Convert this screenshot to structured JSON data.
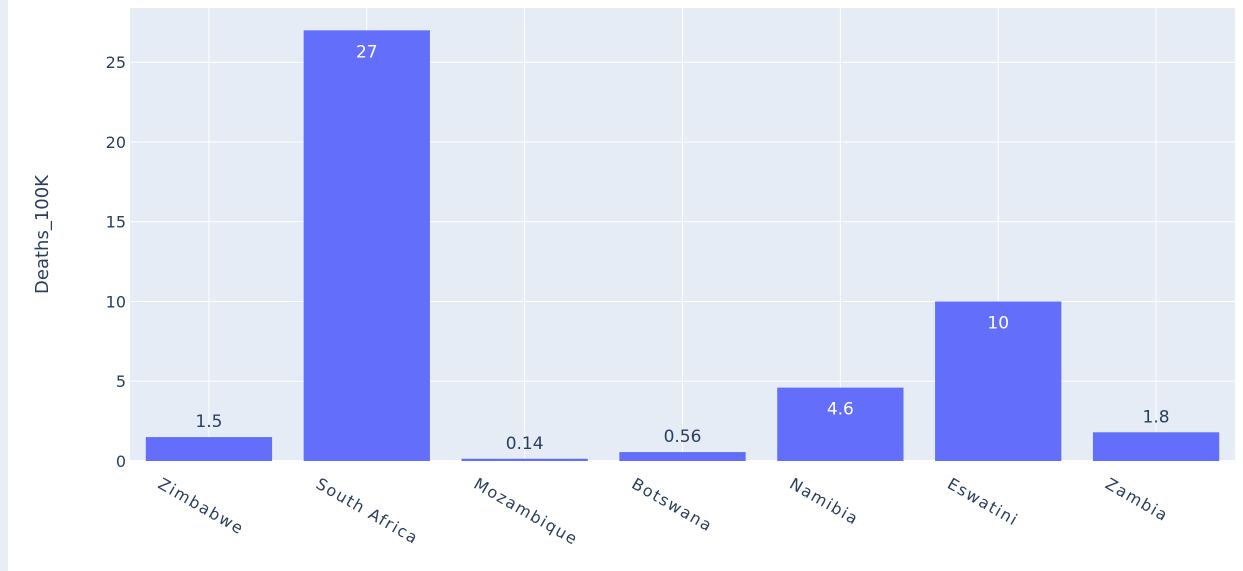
{
  "chart_data": {
    "type": "bar",
    "categories": [
      "Zimbabwe",
      "South Africa",
      "Mozambique",
      "Botswana",
      "Namibia",
      "Eswatini",
      "Zambia"
    ],
    "values": [
      1.5,
      27,
      0.14,
      0.56,
      4.6,
      10,
      1.8
    ],
    "value_labels": [
      "1.5",
      "27",
      "0.14",
      "0.56",
      "4.6",
      "10",
      "1.8"
    ],
    "ylabel": "Deaths_100K",
    "xlabel": "",
    "ylim": [
      0,
      28.4
    ],
    "yticks": [
      0,
      5,
      10,
      15,
      20,
      25
    ],
    "grid": true,
    "colors": {
      "bar": "#636efa",
      "plot_bg": "#e5ecf6",
      "grid": "#ffffff",
      "text": "#2a3f5f",
      "label_inside": "#ffffff"
    }
  }
}
